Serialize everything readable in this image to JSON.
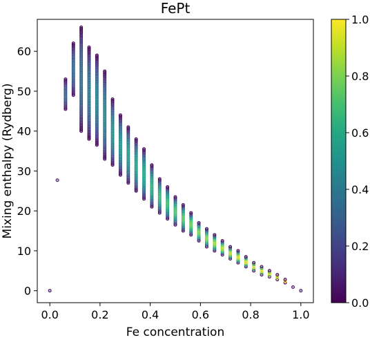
{
  "chart_data": {
    "type": "scatter",
    "title": "FePt",
    "xlabel": "Fe concentration",
    "ylabel": "Mixing enthalpy (Rydberg)",
    "xlim": [
      -0.05,
      1.05
    ],
    "ylim": [
      -3,
      68
    ],
    "xticks": [
      "0.0",
      "0.2",
      "0.4",
      "0.6",
      "0.8",
      "1.0"
    ],
    "yticks": [
      "0",
      "10",
      "20",
      "30",
      "40",
      "50",
      "60"
    ],
    "colorbar": {
      "colormap": "viridis",
      "range": [
        0.0,
        1.0
      ],
      "ticks": [
        "0.0",
        "0.2",
        "0.4",
        "0.6",
        "0.8",
        "1.0"
      ]
    },
    "grid": false,
    "points_note": "columns of points at each Fe concentration; y ranges per column",
    "columns": [
      {
        "x": 0.0,
        "ymin": 0.0,
        "ymax": 0.0
      },
      {
        "x": 0.03,
        "ymin": 27.7,
        "ymax": 27.9
      },
      {
        "x": 0.0625,
        "ymin": 45.5,
        "ymax": 53.0
      },
      {
        "x": 0.09375,
        "ymin": 49.0,
        "ymax": 62.0
      },
      {
        "x": 0.125,
        "ymin": 40.0,
        "ymax": 66.0
      },
      {
        "x": 0.15625,
        "ymin": 38.0,
        "ymax": 61.0
      },
      {
        "x": 0.1875,
        "ymin": 36.5,
        "ymax": 59.0
      },
      {
        "x": 0.21875,
        "ymin": 33.0,
        "ymax": 55.0
      },
      {
        "x": 0.25,
        "ymin": 31.5,
        "ymax": 48.0
      },
      {
        "x": 0.28125,
        "ymin": 29.0,
        "ymax": 44.0
      },
      {
        "x": 0.3125,
        "ymin": 27.0,
        "ymax": 41.0
      },
      {
        "x": 0.34375,
        "ymin": 25.0,
        "ymax": 38.0
      },
      {
        "x": 0.375,
        "ymin": 23.0,
        "ymax": 35.5
      },
      {
        "x": 0.40625,
        "ymin": 21.0,
        "ymax": 31.5
      },
      {
        "x": 0.4375,
        "ymin": 19.5,
        "ymax": 28.0
      },
      {
        "x": 0.46875,
        "ymin": 18.0,
        "ymax": 26.0
      },
      {
        "x": 0.5,
        "ymin": 16.5,
        "ymax": 23.5
      },
      {
        "x": 0.53125,
        "ymin": 15.0,
        "ymax": 21.5
      },
      {
        "x": 0.5625,
        "ymin": 14.0,
        "ymax": 19.5
      },
      {
        "x": 0.59375,
        "ymin": 12.5,
        "ymax": 17.0
      },
      {
        "x": 0.625,
        "ymin": 11.0,
        "ymax": 15.5
      },
      {
        "x": 0.65625,
        "ymin": 10.0,
        "ymax": 14.0
      },
      {
        "x": 0.6875,
        "ymin": 9.0,
        "ymax": 12.5
      },
      {
        "x": 0.71875,
        "ymin": 8.0,
        "ymax": 11.0
      },
      {
        "x": 0.75,
        "ymin": 7.0,
        "ymax": 10.0
      },
      {
        "x": 0.78125,
        "ymin": 6.0,
        "ymax": 8.5
      },
      {
        "x": 0.8125,
        "ymin": 5.0,
        "ymax": 7.0
      },
      {
        "x": 0.84375,
        "ymin": 4.0,
        "ymax": 6.0
      },
      {
        "x": 0.875,
        "ymin": 3.5,
        "ymax": 5.0
      },
      {
        "x": 0.90625,
        "ymin": 2.8,
        "ymax": 4.0
      },
      {
        "x": 0.9375,
        "ymin": 2.0,
        "ymax": 2.8
      },
      {
        "x": 0.96875,
        "ymin": 0.9,
        "ymax": 1.3
      },
      {
        "x": 1.0,
        "ymin": 0.0,
        "ymax": 0.0
      }
    ]
  }
}
